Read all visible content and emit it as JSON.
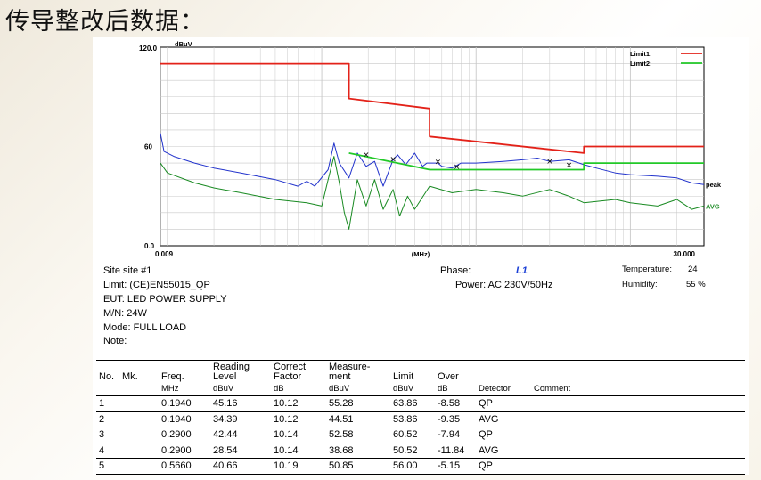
{
  "slide": {
    "title": "传导整改后数据："
  },
  "chart_data": {
    "type": "line",
    "x_scale": "log",
    "xlim": [
      0.009,
      30.0
    ],
    "ylim": [
      0,
      120
    ],
    "y_ticks": [
      "120.0",
      "60",
      "0.0"
    ],
    "y_unit": "dBuV",
    "x_unit": "(MHz)",
    "x_tick_labels": {
      "left": "0.009",
      "right": "30.000"
    },
    "legend": [
      "Limit1:",
      "Limit2:"
    ],
    "legend_position": "top-right",
    "series_labels": {
      "peak": "peak",
      "avg": "AVG"
    },
    "colors": {
      "limit1": "#e32219",
      "limit2": "#22c928",
      "peak": "#2233cc",
      "avg": "#198a22",
      "marker": "#000000"
    },
    "grid": true,
    "limit1": [
      [
        0.009,
        110
      ],
      [
        0.15,
        110
      ],
      [
        0.15,
        89
      ],
      [
        0.5,
        83
      ],
      [
        0.5,
        66
      ],
      [
        5,
        56
      ],
      [
        5,
        60
      ],
      [
        30,
        60
      ]
    ],
    "limit2": [
      [
        0.15,
        56
      ],
      [
        0.5,
        46
      ],
      [
        5,
        46
      ],
      [
        5,
        50
      ],
      [
        30,
        50
      ]
    ],
    "peak": [
      [
        0.009,
        68
      ],
      [
        0.0095,
        57
      ],
      [
        0.011,
        54
      ],
      [
        0.015,
        50
      ],
      [
        0.02,
        47
      ],
      [
        0.03,
        44
      ],
      [
        0.05,
        40
      ],
      [
        0.07,
        36
      ],
      [
        0.08,
        39
      ],
      [
        0.09,
        36
      ],
      [
        0.11,
        46
      ],
      [
        0.12,
        62
      ],
      [
        0.13,
        50
      ],
      [
        0.15,
        41
      ],
      [
        0.17,
        56
      ],
      [
        0.194,
        48
      ],
      [
        0.22,
        51
      ],
      [
        0.25,
        36
      ],
      [
        0.29,
        52
      ],
      [
        0.31,
        55
      ],
      [
        0.35,
        49
      ],
      [
        0.4,
        56
      ],
      [
        0.45,
        48
      ],
      [
        0.48,
        50
      ],
      [
        0.566,
        50
      ],
      [
        0.6,
        48
      ],
      [
        0.7,
        47
      ],
      [
        0.8,
        50
      ],
      [
        1.0,
        50
      ],
      [
        1.5,
        51
      ],
      [
        2.0,
        52
      ],
      [
        2.5,
        53
      ],
      [
        3.0,
        51
      ],
      [
        4.0,
        52
      ],
      [
        5.0,
        49
      ],
      [
        6.0,
        47
      ],
      [
        8.0,
        44
      ],
      [
        10.0,
        43
      ],
      [
        15.0,
        42
      ],
      [
        20.0,
        41
      ],
      [
        25.0,
        38
      ],
      [
        30.0,
        37
      ]
    ],
    "avg": [
      [
        0.009,
        50
      ],
      [
        0.01,
        44
      ],
      [
        0.015,
        38
      ],
      [
        0.02,
        35
      ],
      [
        0.03,
        32
      ],
      [
        0.05,
        28
      ],
      [
        0.08,
        26
      ],
      [
        0.1,
        24
      ],
      [
        0.11,
        40
      ],
      [
        0.12,
        54
      ],
      [
        0.13,
        38
      ],
      [
        0.14,
        20
      ],
      [
        0.15,
        10
      ],
      [
        0.17,
        40
      ],
      [
        0.194,
        24
      ],
      [
        0.22,
        40
      ],
      [
        0.25,
        22
      ],
      [
        0.29,
        34
      ],
      [
        0.32,
        18
      ],
      [
        0.36,
        30
      ],
      [
        0.4,
        22
      ],
      [
        0.5,
        36
      ],
      [
        0.7,
        32
      ],
      [
        1.0,
        34
      ],
      [
        1.5,
        32
      ],
      [
        2.0,
        30
      ],
      [
        3.0,
        34
      ],
      [
        4.0,
        30
      ],
      [
        5.0,
        26
      ],
      [
        8.0,
        28
      ],
      [
        10.0,
        26
      ],
      [
        15.0,
        24
      ],
      [
        20.0,
        28
      ],
      [
        25.0,
        22
      ],
      [
        30.0,
        24
      ]
    ],
    "markers": [
      [
        0.194,
        55.28
      ],
      [
        0.29,
        52.58
      ],
      [
        0.566,
        50.85
      ],
      [
        0.75,
        48
      ],
      [
        3.0,
        51
      ],
      [
        4.0,
        49
      ]
    ]
  },
  "info": {
    "site": "Site  site #1",
    "limit": "Limit:  (CE)EN55015_QP",
    "eut": "EUT:  LED POWER SUPPLY",
    "mn": "M/N:  24W",
    "mode": "Mode:  FULL LOAD",
    "note": "Note:",
    "phase_label": "Phase:",
    "phase_value": "L1",
    "power": "Power:  AC 230V/50Hz",
    "temp_label": "Temperature:",
    "temp_value": "24",
    "hum_label": "Humidity:",
    "hum_value": "55 %"
  },
  "results": {
    "headers": [
      "No.",
      "Mk.",
      "Freq.",
      "Reading Level",
      "Correct Factor",
      "Measure-ment",
      "Limit",
      "Over",
      "Detector",
      "Comment"
    ],
    "units": [
      "",
      "",
      "MHz",
      "dBuV",
      "dB",
      "dBuV",
      "dBuV",
      "dB",
      "",
      ""
    ],
    "rows": [
      [
        "1",
        "",
        "0.1940",
        "45.16",
        "10.12",
        "55.28",
        "63.86",
        "-8.58",
        "QP",
        ""
      ],
      [
        "2",
        "",
        "0.1940",
        "34.39",
        "10.12",
        "44.51",
        "53.86",
        "-9.35",
        "AVG",
        ""
      ],
      [
        "3",
        "",
        "0.2900",
        "42.44",
        "10.14",
        "52.58",
        "60.52",
        "-7.94",
        "QP",
        ""
      ],
      [
        "4",
        "",
        "0.2900",
        "28.54",
        "10.14",
        "38.68",
        "50.52",
        "-11.84",
        "AVG",
        ""
      ],
      [
        "5",
        "",
        "0.5660",
        "40.66",
        "10.19",
        "50.85",
        "56.00",
        "-5.15",
        "QP",
        ""
      ]
    ]
  }
}
